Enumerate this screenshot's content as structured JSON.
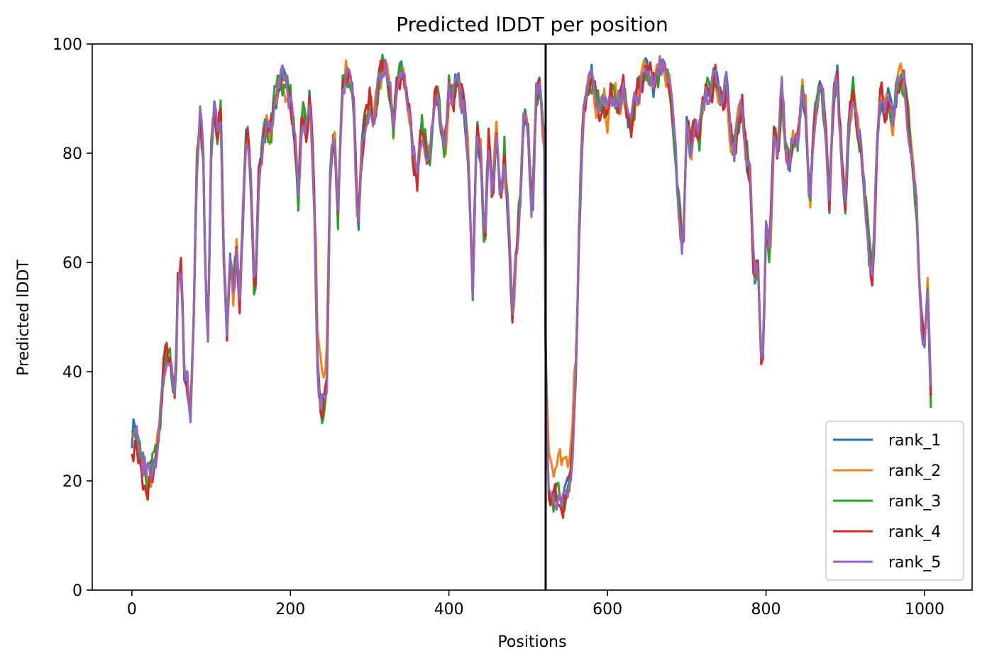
{
  "chart_data": {
    "type": "line",
    "title": "Predicted lDDT per position",
    "xlabel": "Positions",
    "ylabel": "Predicted lDDT",
    "xlim": [
      -50,
      1060
    ],
    "ylim": [
      0,
      100
    ],
    "xticks": [
      0,
      200,
      400,
      600,
      800,
      1000
    ],
    "yticks": [
      0,
      20,
      40,
      60,
      80,
      100
    ],
    "grid": false,
    "legend_position": "lower-right",
    "chain_break": 522,
    "series": [
      {
        "name": "rank_1",
        "color": "#1f77b4"
      },
      {
        "name": "rank_2",
        "color": "#ff7f0e"
      },
      {
        "name": "rank_3",
        "color": "#2ca02c"
      },
      {
        "name": "rank_4",
        "color": "#d62728"
      },
      {
        "name": "rank_5",
        "color": "#9467bd"
      }
    ],
    "profile": [
      [
        0,
        28
      ],
      [
        5,
        30
      ],
      [
        10,
        25
      ],
      [
        15,
        23
      ],
      [
        20,
        21
      ],
      [
        25,
        22
      ],
      [
        30,
        25
      ],
      [
        35,
        30
      ],
      [
        40,
        40
      ],
      [
        45,
        44
      ],
      [
        50,
        40
      ],
      [
        55,
        35
      ],
      [
        58,
        55
      ],
      [
        62,
        60
      ],
      [
        66,
        40
      ],
      [
        70,
        38
      ],
      [
        74,
        31
      ],
      [
        78,
        50
      ],
      [
        82,
        78
      ],
      [
        86,
        88
      ],
      [
        90,
        80
      ],
      [
        93,
        55
      ],
      [
        96,
        48
      ],
      [
        100,
        80
      ],
      [
        104,
        88
      ],
      [
        108,
        82
      ],
      [
        112,
        88
      ],
      [
        116,
        62
      ],
      [
        120,
        46
      ],
      [
        124,
        60
      ],
      [
        128,
        55
      ],
      [
        132,
        62
      ],
      [
        136,
        52
      ],
      [
        140,
        68
      ],
      [
        145,
        86
      ],
      [
        150,
        75
      ],
      [
        155,
        52
      ],
      [
        160,
        75
      ],
      [
        165,
        82
      ],
      [
        170,
        86
      ],
      [
        175,
        83
      ],
      [
        180,
        90
      ],
      [
        185,
        92
      ],
      [
        190,
        93
      ],
      [
        195,
        92
      ],
      [
        200,
        90
      ],
      [
        205,
        84
      ],
      [
        210,
        72
      ],
      [
        215,
        88
      ],
      [
        220,
        84
      ],
      [
        225,
        90
      ],
      [
        230,
        72
      ],
      [
        234,
        42
      ],
      [
        238,
        34
      ],
      [
        242,
        33
      ],
      [
        246,
        38
      ],
      [
        250,
        75
      ],
      [
        255,
        85
      ],
      [
        260,
        68
      ],
      [
        265,
        92
      ],
      [
        270,
        94
      ],
      [
        275,
        94
      ],
      [
        280,
        88
      ],
      [
        285,
        66
      ],
      [
        290,
        80
      ],
      [
        295,
        86
      ],
      [
        300,
        90
      ],
      [
        305,
        84
      ],
      [
        310,
        92
      ],
      [
        315,
        95
      ],
      [
        320,
        96
      ],
      [
        325,
        92
      ],
      [
        330,
        84
      ],
      [
        335,
        94
      ],
      [
        340,
        95
      ],
      [
        345,
        92
      ],
      [
        350,
        88
      ],
      [
        355,
        80
      ],
      [
        360,
        75
      ],
      [
        365,
        85
      ],
      [
        370,
        82
      ],
      [
        375,
        78
      ],
      [
        380,
        86
      ],
      [
        385,
        92
      ],
      [
        390,
        85
      ],
      [
        395,
        80
      ],
      [
        400,
        92
      ],
      [
        405,
        90
      ],
      [
        410,
        94
      ],
      [
        415,
        90
      ],
      [
        420,
        88
      ],
      [
        425,
        78
      ],
      [
        430,
        54
      ],
      [
        435,
        85
      ],
      [
        440,
        80
      ],
      [
        445,
        62
      ],
      [
        450,
        82
      ],
      [
        455,
        72
      ],
      [
        460,
        84
      ],
      [
        465,
        70
      ],
      [
        470,
        80
      ],
      [
        475,
        68
      ],
      [
        480,
        50
      ],
      [
        485,
        62
      ],
      [
        490,
        72
      ],
      [
        495,
        88
      ],
      [
        500,
        84
      ],
      [
        505,
        68
      ],
      [
        510,
        90
      ],
      [
        515,
        92
      ],
      [
        520,
        82
      ],
      [
        522,
        45
      ],
      [
        525,
        18
      ],
      [
        530,
        16
      ],
      [
        535,
        17
      ],
      [
        540,
        17
      ],
      [
        545,
        16
      ],
      [
        550,
        18
      ],
      [
        555,
        22
      ],
      [
        560,
        40
      ],
      [
        565,
        70
      ],
      [
        570,
        88
      ],
      [
        575,
        92
      ],
      [
        580,
        94
      ],
      [
        585,
        90
      ],
      [
        590,
        88
      ],
      [
        595,
        90
      ],
      [
        600,
        86
      ],
      [
        605,
        92
      ],
      [
        610,
        90
      ],
      [
        615,
        88
      ],
      [
        620,
        92
      ],
      [
        625,
        88
      ],
      [
        630,
        84
      ],
      [
        635,
        90
      ],
      [
        640,
        92
      ],
      [
        645,
        94
      ],
      [
        650,
        95
      ],
      [
        655,
        94
      ],
      [
        660,
        93
      ],
      [
        665,
        95
      ],
      [
        670,
        96
      ],
      [
        675,
        94
      ],
      [
        680,
        90
      ],
      [
        685,
        82
      ],
      [
        690,
        70
      ],
      [
        695,
        62
      ],
      [
        700,
        85
      ],
      [
        705,
        80
      ],
      [
        710,
        86
      ],
      [
        715,
        82
      ],
      [
        720,
        88
      ],
      [
        725,
        92
      ],
      [
        730,
        90
      ],
      [
        735,
        94
      ],
      [
        740,
        92
      ],
      [
        745,
        90
      ],
      [
        750,
        92
      ],
      [
        755,
        84
      ],
      [
        760,
        80
      ],
      [
        765,
        86
      ],
      [
        770,
        88
      ],
      [
        775,
        80
      ],
      [
        780,
        76
      ],
      [
        785,
        56
      ],
      [
        790,
        60
      ],
      [
        795,
        38
      ],
      [
        800,
        65
      ],
      [
        805,
        62
      ],
      [
        810,
        84
      ],
      [
        815,
        80
      ],
      [
        820,
        92
      ],
      [
        825,
        80
      ],
      [
        830,
        78
      ],
      [
        835,
        84
      ],
      [
        840,
        82
      ],
      [
        845,
        92
      ],
      [
        850,
        88
      ],
      [
        855,
        70
      ],
      [
        860,
        85
      ],
      [
        865,
        90
      ],
      [
        870,
        92
      ],
      [
        875,
        84
      ],
      [
        880,
        72
      ],
      [
        885,
        90
      ],
      [
        890,
        94
      ],
      [
        895,
        80
      ],
      [
        900,
        70
      ],
      [
        905,
        86
      ],
      [
        910,
        92
      ],
      [
        915,
        85
      ],
      [
        920,
        80
      ],
      [
        925,
        72
      ],
      [
        930,
        62
      ],
      [
        935,
        58
      ],
      [
        940,
        80
      ],
      [
        945,
        92
      ],
      [
        950,
        88
      ],
      [
        955,
        90
      ],
      [
        960,
        86
      ],
      [
        965,
        92
      ],
      [
        970,
        94
      ],
      [
        975,
        92
      ],
      [
        980,
        85
      ],
      [
        985,
        78
      ],
      [
        990,
        70
      ],
      [
        995,
        50
      ],
      [
        1000,
        46
      ],
      [
        1004,
        55
      ],
      [
        1008,
        36
      ]
    ]
  }
}
